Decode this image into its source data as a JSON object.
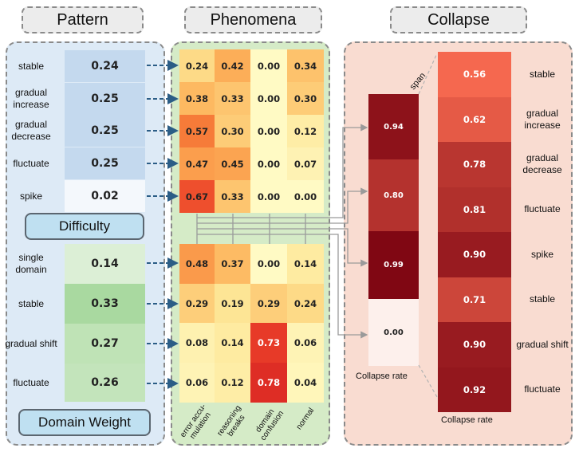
{
  "headers": {
    "pattern": "Pattern",
    "phenomena": "Phenomena",
    "collapse": "Collapse"
  },
  "difficulty": {
    "title": "Difficulty",
    "rows": [
      {
        "label": "stable",
        "value": "0.24",
        "color": "#c4d9ee"
      },
      {
        "label": "gradual increase",
        "value": "0.25",
        "color": "#c4d9ee"
      },
      {
        "label": "gradual decrease",
        "value": "0.25",
        "color": "#c4d9ee"
      },
      {
        "label": "fluctuate",
        "value": "0.25",
        "color": "#c4d9ee"
      },
      {
        "label": "spike",
        "value": "0.02",
        "color": "#f4f8fc"
      }
    ]
  },
  "domain_weight": {
    "title": "Domain Weight",
    "rows": [
      {
        "label": "single domain",
        "value": "0.14",
        "color": "#dcefd6"
      },
      {
        "label": "stable",
        "value": "0.33",
        "color": "#a9d9a0"
      },
      {
        "label": "gradual shift",
        "value": "0.27",
        "color": "#bfe3b6"
      },
      {
        "label": "fluctuate",
        "value": "0.26",
        "color": "#c3e4bb"
      }
    ]
  },
  "phenomena": {
    "columns": [
      "error accu-\nmulation",
      "reasoning\nbreaks",
      "domain\nconfusion",
      "normal"
    ],
    "top": [
      [
        "0.24",
        "0.42",
        "0.00",
        "0.34"
      ],
      [
        "0.38",
        "0.33",
        "0.00",
        "0.30"
      ],
      [
        "0.57",
        "0.30",
        "0.00",
        "0.12"
      ],
      [
        "0.47",
        "0.45",
        "0.00",
        "0.07"
      ],
      [
        "0.67",
        "0.33",
        "0.00",
        "0.00"
      ]
    ],
    "bottom": [
      [
        "0.48",
        "0.37",
        "0.00",
        "0.14"
      ],
      [
        "0.29",
        "0.19",
        "0.29",
        "0.24"
      ],
      [
        "0.08",
        "0.14",
        "0.73",
        "0.06"
      ],
      [
        "0.06",
        "0.12",
        "0.78",
        "0.04"
      ]
    ]
  },
  "collapse_compact": {
    "span_label": "span",
    "values": [
      "0.94",
      "0.80",
      "0.99",
      "0.00"
    ],
    "caption": "Collapse rate"
  },
  "collapse_big": {
    "rows": [
      {
        "label": "stable",
        "value": "0.56"
      },
      {
        "label": "gradual increase",
        "value": "0.62"
      },
      {
        "label": "gradual decrease",
        "value": "0.78"
      },
      {
        "label": "fluctuate",
        "value": "0.81"
      },
      {
        "label": "spike",
        "value": "0.90"
      },
      {
        "label": "stable",
        "value": "0.71"
      },
      {
        "label": "gradual shift",
        "value": "0.90"
      },
      {
        "label": "fluctuate",
        "value": "0.92"
      }
    ],
    "caption": "Collapse rate"
  },
  "colors": {
    "pattern_panel": "#ddeaf6",
    "phenomena_panel": "#d5ebc7",
    "collapse_panel": "#f9dcd1",
    "arrow": "#2b5d86"
  }
}
